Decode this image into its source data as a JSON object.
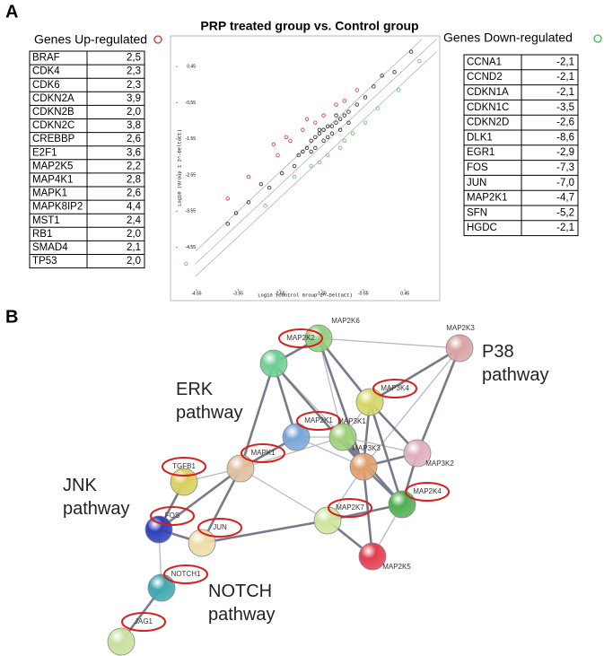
{
  "panel_labels": [
    "A",
    "B"
  ],
  "up_table": {
    "heading": "Genes Up-regulated",
    "rows": [
      [
        "BRAF",
        "2,5"
      ],
      [
        "CDK4",
        "2,3"
      ],
      [
        "CDK6",
        "2,3"
      ],
      [
        "CDKN2A",
        "3,9"
      ],
      [
        "CDKN2B",
        "2,0"
      ],
      [
        "CDKN2C",
        "3,8"
      ],
      [
        "CREBBP",
        "2,6"
      ],
      [
        "E2F1",
        "3,6"
      ],
      [
        "MAP2K5",
        "2,2"
      ],
      [
        "MAP4K1",
        "2,8"
      ],
      [
        "MAPK1",
        "2,6"
      ],
      [
        "MAPK8IP2",
        "4,4"
      ],
      [
        "MST1",
        "2,4"
      ],
      [
        "RB1",
        "2,0"
      ],
      [
        "SMAD4",
        "2,1"
      ],
      [
        "TP53",
        "2,0"
      ]
    ]
  },
  "down_table": {
    "heading": "Genes Down-regulated",
    "rows": [
      [
        "CCNA1",
        "-2,1"
      ],
      [
        "CCND2",
        "-2,1"
      ],
      [
        "CDKN1A",
        "-2,1"
      ],
      [
        "CDKN1C",
        "-3,5"
      ],
      [
        "CDKN2D",
        "-2,6"
      ],
      [
        "DLK1",
        "-8,6"
      ],
      [
        "EGR1",
        "-2,9"
      ],
      [
        "FOS",
        "-7,3"
      ],
      [
        "JUN",
        "-7,0"
      ],
      [
        "MAP2K1",
        "-4,7"
      ],
      [
        "SFN",
        "-5,2"
      ],
      [
        "HGDC",
        "-2,1"
      ]
    ]
  },
  "chart_data": {
    "type": "scatter",
    "title": "PRP treated group vs. Control group",
    "x_label": "Log10 (Control Group 2^-DeltaCt)",
    "y_label": "Log10 (Group 1 2^-DeltaCt)",
    "xlim": [
      -5,
      1.2
    ],
    "ylim": [
      -5.7,
      1.2
    ],
    "xticks": [
      -4.55,
      -3.55,
      -2.55,
      -1.55,
      -0.55,
      0.45
    ],
    "yticks": [
      -4.55,
      -3.55,
      -2.55,
      -1.55,
      -0.55,
      0.45
    ],
    "series": [
      {
        "color": "#222222",
        "x": [
          0.6,
          0.2,
          -0.1,
          -0.3,
          -0.5,
          -0.7,
          -0.9,
          -1.0,
          -1.1,
          -1.2,
          -1.3,
          -1.4,
          -1.5,
          -1.6,
          -1.7,
          -1.8,
          -1.9,
          -2.0,
          -2.1,
          -1.5,
          -1.3,
          -1.1,
          -1.7,
          -1.4,
          -1.6,
          -2.2,
          -2.5,
          -2.8,
          -3.0,
          -3.3,
          -3.6,
          -3.8,
          -1.2,
          -0.9,
          -1.8
        ],
        "values": [
          0.86,
          0.3,
          0.2,
          -0.1,
          -0.4,
          -0.6,
          -0.8,
          -0.9,
          -1.0,
          -1.1,
          -1.2,
          -1.2,
          -1.3,
          -1.4,
          -1.5,
          -1.6,
          -1.8,
          -1.9,
          -2.0,
          -1.6,
          -1.4,
          -1.3,
          -1.8,
          -1.5,
          -1.3,
          -2.3,
          -2.5,
          -2.9,
          -2.8,
          -3.3,
          -3.6,
          -3.9,
          -0.9,
          -1.1,
          -1.9
        ]
      },
      {
        "color": "#e0302a",
        "x": [
          -0.7,
          -1.0,
          -1.2,
          -1.5,
          -1.7,
          -2.0,
          -2.3,
          -2.6,
          -3.3,
          -3.8,
          -1.9,
          -2.4,
          -2.7
        ],
        "values": [
          -0.2,
          -0.5,
          -0.6,
          -0.9,
          -1.1,
          -1.3,
          -1.6,
          -2.0,
          -2.6,
          -3.2,
          -1.0,
          -1.5,
          -1.7
        ]
      },
      {
        "color": "#5cc85c",
        "x": [
          0.8,
          0.3,
          -0.2,
          -0.5,
          -0.8,
          -1.1,
          -1.4,
          -1.8,
          -2.2,
          -2.9,
          -1.6,
          -4.8,
          -1.0
        ],
        "values": [
          0.6,
          -0.2,
          -0.7,
          -1.1,
          -1.4,
          -1.8,
          -2.0,
          -2.3,
          -2.6,
          -3.4,
          -2.2,
          -5.0,
          -1.6
        ]
      }
    ]
  },
  "network": {
    "nodes": [
      "MAP2K6",
      "MAP2K3",
      "MAP2K2",
      "MAP3K4",
      "MAP2K1",
      "MAP3K1",
      "MAP3K3",
      "MAP3K2",
      "MAPK1",
      "TGFB1",
      "MAP2K4",
      "MAP2K7",
      "MAP2K5",
      "FOS",
      "JUN",
      "NOTCH1",
      "JAG1"
    ],
    "pathways": [
      "ERK pathway",
      "P38 pathway",
      "JNK pathway",
      "NOTCH pathway"
    ]
  }
}
